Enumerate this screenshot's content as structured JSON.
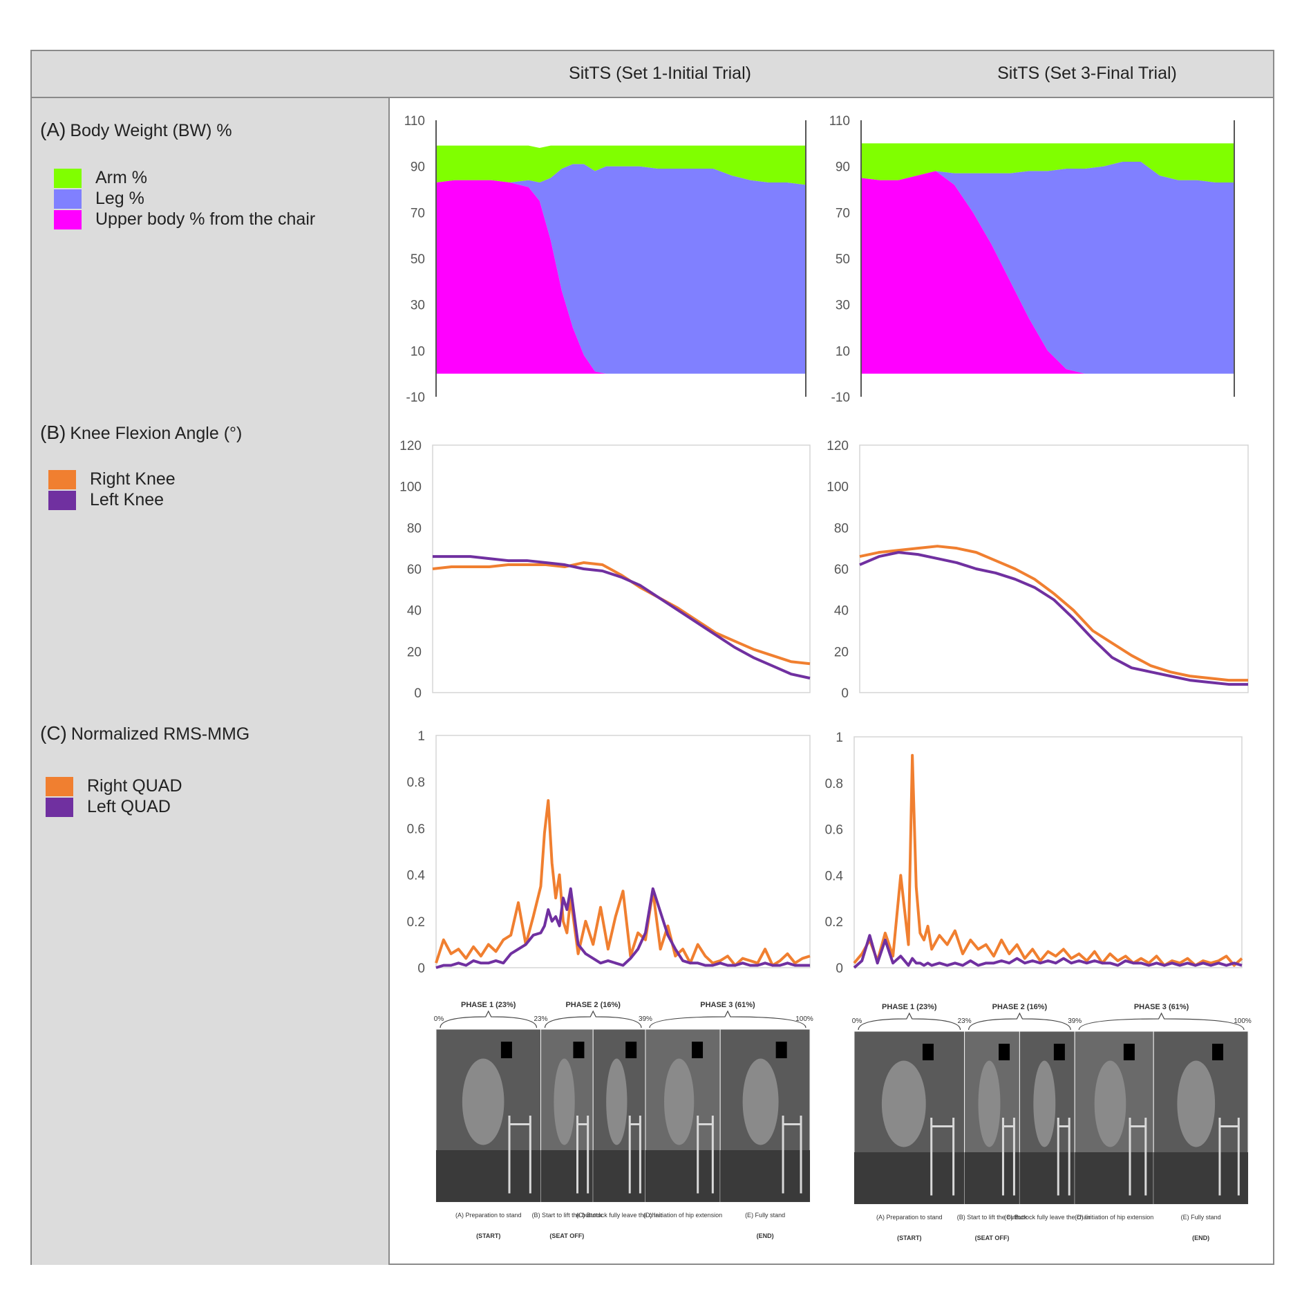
{
  "header": {
    "col1_title": "SitTS (Set 1-Initial Trial)",
    "col2_title": "SitTS (Set 3-Final Trial)"
  },
  "sections": {
    "a": {
      "tag": "(A)",
      "title": "Body Weight (BW) %",
      "legend": [
        {
          "label": "Arm %",
          "color": "#80ff00"
        },
        {
          "label": "Leg %",
          "color": "#8080ff"
        },
        {
          "label": "Upper body % from the chair",
          "color": "#ff00ff"
        }
      ]
    },
    "b": {
      "tag": "(B)",
      "title": "Knee Flexion Angle (°)",
      "legend": [
        {
          "label": "Right Knee",
          "color": "#f07f30"
        },
        {
          "label": "Left Knee",
          "color": "#7030a0"
        }
      ]
    },
    "c": {
      "tag": "(C)",
      "title": "Normalized RMS-MMG",
      "legend": [
        {
          "label": "Right QUAD",
          "color": "#f07f30"
        },
        {
          "label": "Left QUAD",
          "color": "#7030a0"
        }
      ]
    }
  },
  "phase_strip": {
    "phases": [
      "PHASE 1 (23%)",
      "PHASE 2 (16%)",
      "PHASE 3 (61%)"
    ],
    "percents": [
      "0%",
      "23%",
      "39%",
      "100%"
    ],
    "captions": [
      "(A) Preparation to stand",
      "(B) Start to lift the buttock",
      "(C) Buttock fully leave the chair",
      "(D) Initiation of hip extension",
      "(E) Fully stand"
    ],
    "markers": [
      "(START)",
      "(SEAT OFF)",
      "(END)"
    ]
  },
  "chart_data": [
    {
      "id": "bw-set1",
      "type": "area",
      "stacked": true,
      "x": [
        0,
        5,
        10,
        15,
        20,
        25,
        28,
        31,
        34,
        37,
        40,
        43,
        46,
        50,
        55,
        60,
        65,
        70,
        75,
        80,
        85,
        90,
        95,
        100
      ],
      "ylim": [
        -10,
        110
      ],
      "yticks": [
        110,
        90,
        70,
        50,
        30,
        10,
        -10
      ],
      "series": [
        {
          "name": "Upper body % from the chair",
          "color": "#ff00ff",
          "values": [
            83,
            84,
            84,
            84,
            83,
            81,
            75,
            58,
            36,
            20,
            8,
            1,
            0,
            0,
            0,
            0,
            0,
            0,
            0,
            0,
            0,
            0,
            0,
            0
          ]
        },
        {
          "name": "Leg %",
          "color": "#8080ff",
          "values": [
            0,
            0,
            0,
            0,
            0,
            3,
            8,
            27,
            53,
            71,
            83,
            87,
            90,
            90,
            90,
            89,
            89,
            89,
            89,
            86,
            84,
            83,
            83,
            82
          ]
        },
        {
          "name": "Arm %",
          "color": "#80ff00",
          "values": [
            16,
            15,
            15,
            15,
            16,
            15,
            15,
            14,
            10,
            8,
            8,
            11,
            9,
            9,
            9,
            10,
            10,
            10,
            10,
            13,
            15,
            16,
            16,
            17
          ]
        }
      ]
    },
    {
      "id": "bw-set3",
      "type": "area",
      "stacked": true,
      "x": [
        0,
        5,
        10,
        15,
        20,
        25,
        30,
        35,
        40,
        45,
        50,
        55,
        60,
        65,
        70,
        75,
        80,
        85,
        90,
        95,
        100
      ],
      "ylim": [
        -10,
        110
      ],
      "yticks": [
        110,
        90,
        70,
        50,
        30,
        10,
        -10
      ],
      "series": [
        {
          "name": "Upper body % from the chair",
          "color": "#ff00ff",
          "values": [
            85,
            84,
            84,
            86,
            88,
            82,
            70,
            56,
            40,
            24,
            10,
            2,
            0,
            0,
            0,
            0,
            0,
            0,
            0,
            0,
            0
          ]
        },
        {
          "name": "Leg %",
          "color": "#8080ff",
          "values": [
            0,
            0,
            0,
            0,
            0,
            5,
            17,
            31,
            47,
            64,
            78,
            87,
            89,
            90,
            92,
            92,
            86,
            84,
            84,
            83,
            83
          ]
        },
        {
          "name": "Arm %",
          "color": "#80ff00",
          "values": [
            15,
            16,
            16,
            14,
            12,
            13,
            13,
            13,
            13,
            12,
            12,
            11,
            11,
            10,
            8,
            8,
            14,
            16,
            16,
            17,
            17
          ]
        }
      ]
    },
    {
      "id": "knee-set1",
      "type": "line",
      "x": [
        0,
        5,
        10,
        15,
        20,
        25,
        30,
        35,
        40,
        45,
        50,
        55,
        60,
        65,
        70,
        75,
        80,
        85,
        90,
        95,
        100
      ],
      "ylim": [
        0,
        120
      ],
      "yticks": [
        120,
        100,
        80,
        60,
        40,
        20,
        0
      ],
      "series": [
        {
          "name": "Right Knee",
          "color": "#f07f30",
          "values": [
            60,
            61,
            61,
            61,
            62,
            62,
            62,
            61,
            63,
            62,
            57,
            51,
            46,
            41,
            35,
            29,
            25,
            21,
            18,
            15,
            14
          ]
        },
        {
          "name": "Left Knee",
          "color": "#7030a0",
          "values": [
            66,
            66,
            66,
            65,
            64,
            64,
            63,
            62,
            60,
            59,
            56,
            52,
            46,
            40,
            34,
            28,
            22,
            17,
            13,
            9,
            7
          ]
        }
      ]
    },
    {
      "id": "knee-set3",
      "type": "line",
      "x": [
        0,
        5,
        10,
        15,
        20,
        25,
        30,
        35,
        40,
        45,
        50,
        55,
        60,
        65,
        70,
        75,
        80,
        85,
        90,
        95,
        100
      ],
      "ylim": [
        0,
        120
      ],
      "yticks": [
        120,
        100,
        80,
        60,
        40,
        20,
        0
      ],
      "series": [
        {
          "name": "Right Knee",
          "color": "#f07f30",
          "values": [
            66,
            68,
            69,
            70,
            71,
            70,
            68,
            64,
            60,
            55,
            48,
            40,
            30,
            24,
            18,
            13,
            10,
            8,
            7,
            6,
            6
          ]
        },
        {
          "name": "Left Knee",
          "color": "#7030a0",
          "values": [
            62,
            66,
            68,
            67,
            65,
            63,
            60,
            58,
            55,
            51,
            45,
            36,
            26,
            17,
            12,
            10,
            8,
            6,
            5,
            4,
            4
          ]
        }
      ]
    },
    {
      "id": "mmg-set1",
      "type": "line",
      "x": [
        0,
        2,
        4,
        6,
        8,
        10,
        12,
        14,
        16,
        18,
        20,
        22,
        24,
        26,
        28,
        29,
        30,
        31,
        32,
        33,
        34,
        35,
        36,
        38,
        40,
        42,
        44,
        46,
        48,
        50,
        52,
        54,
        56,
        58,
        60,
        62,
        64,
        66,
        68,
        70,
        72,
        74,
        76,
        78,
        80,
        82,
        84,
        86,
        88,
        90,
        92,
        94,
        96,
        98,
        100
      ],
      "ylim": [
        0,
        1
      ],
      "yticks": [
        1,
        0.8,
        0.6,
        0.4,
        0.2,
        0
      ],
      "series": [
        {
          "name": "Right QUAD",
          "color": "#f07f30",
          "values": [
            0.02,
            0.12,
            0.06,
            0.08,
            0.04,
            0.09,
            0.05,
            0.1,
            0.07,
            0.12,
            0.14,
            0.28,
            0.1,
            0.22,
            0.35,
            0.58,
            0.72,
            0.45,
            0.3,
            0.4,
            0.2,
            0.15,
            0.3,
            0.06,
            0.2,
            0.1,
            0.26,
            0.08,
            0.22,
            0.33,
            0.05,
            0.15,
            0.12,
            0.33,
            0.08,
            0.18,
            0.05,
            0.08,
            0.02,
            0.1,
            0.05,
            0.02,
            0.03,
            0.05,
            0.01,
            0.04,
            0.03,
            0.02,
            0.08,
            0.01,
            0.03,
            0.06,
            0.02,
            0.04,
            0.05
          ]
        },
        {
          "name": "Left QUAD",
          "color": "#7030a0",
          "values": [
            0.0,
            0.01,
            0.01,
            0.02,
            0.01,
            0.03,
            0.02,
            0.02,
            0.03,
            0.02,
            0.06,
            0.08,
            0.1,
            0.14,
            0.15,
            0.18,
            0.25,
            0.2,
            0.22,
            0.18,
            0.3,
            0.25,
            0.34,
            0.1,
            0.06,
            0.04,
            0.02,
            0.03,
            0.02,
            0.01,
            0.04,
            0.08,
            0.15,
            0.34,
            0.24,
            0.14,
            0.08,
            0.03,
            0.02,
            0.02,
            0.01,
            0.01,
            0.02,
            0.01,
            0.01,
            0.02,
            0.01,
            0.01,
            0.02,
            0.01,
            0.01,
            0.02,
            0.01,
            0.01,
            0.01
          ]
        }
      ]
    },
    {
      "id": "mmg-set3",
      "type": "line",
      "x": [
        0,
        2,
        4,
        6,
        8,
        10,
        12,
        14,
        15,
        16,
        17,
        18,
        19,
        20,
        22,
        24,
        26,
        28,
        30,
        32,
        34,
        36,
        38,
        40,
        42,
        44,
        46,
        48,
        50,
        52,
        54,
        56,
        58,
        60,
        62,
        64,
        66,
        68,
        70,
        72,
        74,
        76,
        78,
        80,
        82,
        84,
        86,
        88,
        90,
        92,
        94,
        96,
        98,
        100
      ],
      "ylim": [
        0,
        1
      ],
      "yticks": [
        1,
        0.8,
        0.6,
        0.4,
        0.2,
        0
      ],
      "series": [
        {
          "name": "Right QUAD",
          "color": "#f07f30",
          "values": [
            0.02,
            0.06,
            0.12,
            0.03,
            0.15,
            0.05,
            0.4,
            0.1,
            0.92,
            0.35,
            0.15,
            0.12,
            0.18,
            0.08,
            0.14,
            0.1,
            0.16,
            0.06,
            0.12,
            0.08,
            0.1,
            0.05,
            0.12,
            0.06,
            0.1,
            0.04,
            0.08,
            0.03,
            0.07,
            0.05,
            0.08,
            0.04,
            0.06,
            0.03,
            0.07,
            0.02,
            0.06,
            0.03,
            0.05,
            0.02,
            0.04,
            0.02,
            0.05,
            0.01,
            0.03,
            0.02,
            0.04,
            0.01,
            0.03,
            0.02,
            0.03,
            0.05,
            0.01,
            0.04
          ]
        },
        {
          "name": "Left QUAD",
          "color": "#7030a0",
          "values": [
            0.0,
            0.03,
            0.14,
            0.02,
            0.12,
            0.02,
            0.05,
            0.01,
            0.04,
            0.02,
            0.02,
            0.01,
            0.02,
            0.01,
            0.02,
            0.01,
            0.02,
            0.01,
            0.03,
            0.01,
            0.02,
            0.02,
            0.03,
            0.02,
            0.04,
            0.02,
            0.03,
            0.02,
            0.03,
            0.02,
            0.04,
            0.02,
            0.03,
            0.02,
            0.03,
            0.02,
            0.02,
            0.01,
            0.03,
            0.02,
            0.02,
            0.01,
            0.02,
            0.01,
            0.02,
            0.01,
            0.02,
            0.01,
            0.02,
            0.01,
            0.02,
            0.01,
            0.02,
            0.01
          ]
        }
      ]
    }
  ]
}
